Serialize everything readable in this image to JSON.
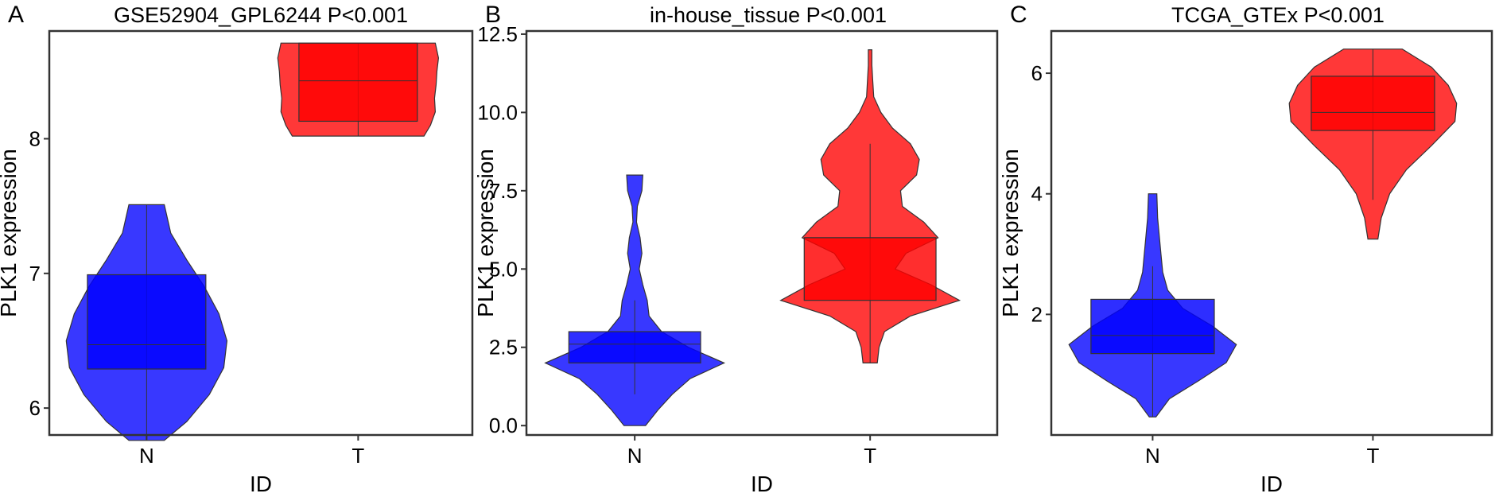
{
  "chart_data": [
    {
      "type": "violin",
      "panel": "A",
      "title": "GSE52904_GPL6244",
      "pvalue_label": "P<0.001",
      "xlabel": "ID",
      "ylabel": "PLK1 expression",
      "categories": [
        "N",
        "T"
      ],
      "ylim": [
        5.8,
        8.8
      ],
      "yticks": [
        6,
        7,
        8
      ],
      "ytick_labels": [
        "6",
        "7",
        "8"
      ],
      "grid": false,
      "groups": [
        {
          "name": "N",
          "color": "#0000ff",
          "min": 5.76,
          "q1": 6.29,
          "median": 6.47,
          "q3": 6.99,
          "max": 7.51,
          "density": [
            [
              5.76,
              0.22
            ],
            [
              5.9,
              0.5
            ],
            [
              6.1,
              0.78
            ],
            [
              6.3,
              0.96
            ],
            [
              6.5,
              1.0
            ],
            [
              6.7,
              0.9
            ],
            [
              6.9,
              0.72
            ],
            [
              7.1,
              0.5
            ],
            [
              7.3,
              0.3
            ],
            [
              7.51,
              0.22
            ]
          ]
        },
        {
          "name": "T",
          "color": "#ff0000",
          "min": 8.02,
          "q1": 8.13,
          "median": 8.43,
          "q3": 8.71,
          "max": 8.71,
          "density": [
            [
              8.02,
              0.82
            ],
            [
              8.1,
              0.9
            ],
            [
              8.2,
              0.96
            ],
            [
              8.3,
              0.95
            ],
            [
              8.4,
              0.97
            ],
            [
              8.5,
              0.98
            ],
            [
              8.6,
              1.0
            ],
            [
              8.71,
              0.96
            ]
          ]
        }
      ]
    },
    {
      "type": "violin",
      "panel": "B",
      "title": "in-house_tissue",
      "pvalue_label": "P<0.001",
      "xlabel": "ID",
      "ylabel": "PLK1 expression",
      "categories": [
        "N",
        "T"
      ],
      "ylim": [
        -0.3,
        12.6
      ],
      "yticks": [
        0,
        2.5,
        5,
        7.5,
        10,
        12.5
      ],
      "ytick_labels": [
        "0.0",
        "2.5",
        "5.0",
        "7.5",
        "10.0",
        "12.5"
      ],
      "grid": false,
      "groups": [
        {
          "name": "N",
          "color": "#0000ff",
          "min": 1.0,
          "q1": 2.0,
          "median": 2.6,
          "q3": 3.0,
          "max": 4.0,
          "density": [
            [
              0,
              0.12
            ],
            [
              0.5,
              0.26
            ],
            [
              1,
              0.42
            ],
            [
              1.5,
              0.62
            ],
            [
              2,
              1.0
            ],
            [
              2.5,
              0.6
            ],
            [
              3,
              0.3
            ],
            [
              3.5,
              0.16
            ],
            [
              4,
              0.14
            ],
            [
              4.5,
              0.09
            ],
            [
              5,
              0.05
            ],
            [
              5.5,
              0.08
            ],
            [
              6,
              0.06
            ],
            [
              6.5,
              0.02
            ],
            [
              7,
              0.03
            ],
            [
              7.5,
              0.08
            ],
            [
              8,
              0.09
            ]
          ]
        },
        {
          "name": "T",
          "color": "#ff0000",
          "min": 2.0,
          "q1": 4.0,
          "median": 6.0,
          "q3": 6.0,
          "max": 9.0,
          "density": [
            [
              2,
              0.08
            ],
            [
              2.5,
              0.1
            ],
            [
              3,
              0.16
            ],
            [
              3.5,
              0.45
            ],
            [
              4,
              1.0
            ],
            [
              4.5,
              0.68
            ],
            [
              5,
              0.28
            ],
            [
              5.5,
              0.4
            ],
            [
              6,
              0.76
            ],
            [
              6.5,
              0.6
            ],
            [
              7,
              0.36
            ],
            [
              7.5,
              0.34
            ],
            [
              8,
              0.52
            ],
            [
              8.5,
              0.55
            ],
            [
              9,
              0.45
            ],
            [
              9.5,
              0.25
            ],
            [
              10,
              0.12
            ],
            [
              10.5,
              0.04
            ],
            [
              11,
              0.03
            ],
            [
              11.5,
              0.02
            ],
            [
              12,
              0.02
            ]
          ]
        }
      ]
    },
    {
      "type": "violin",
      "panel": "C",
      "title": "TCGA_GTEx",
      "pvalue_label": "P<0.001",
      "xlabel": "ID",
      "ylabel": "PLK1 expression",
      "categories": [
        "N",
        "T"
      ],
      "ylim": [
        0,
        6.7
      ],
      "yticks": [
        2,
        4,
        6
      ],
      "ytick_labels": [
        "2",
        "4",
        "6"
      ],
      "grid": false,
      "groups": [
        {
          "name": "N",
          "color": "#0000ff",
          "min": 0.3,
          "q1": 1.35,
          "median": 1.65,
          "q3": 2.25,
          "max": 2.8,
          "density": [
            [
              0.3,
              0.04
            ],
            [
              0.6,
              0.2
            ],
            [
              0.9,
              0.55
            ],
            [
              1.2,
              0.88
            ],
            [
              1.5,
              1.0
            ],
            [
              1.8,
              0.72
            ],
            [
              2.1,
              0.36
            ],
            [
              2.4,
              0.18
            ],
            [
              2.7,
              0.12
            ],
            [
              3.0,
              0.1
            ],
            [
              3.3,
              0.08
            ],
            [
              3.6,
              0.06
            ],
            [
              4.0,
              0.05
            ]
          ]
        },
        {
          "name": "T",
          "color": "#ff0000",
          "min": 3.9,
          "q1": 5.05,
          "median": 5.35,
          "q3": 5.95,
          "max": 6.4,
          "density": [
            [
              3.25,
              0.06
            ],
            [
              3.6,
              0.1
            ],
            [
              4.0,
              0.2
            ],
            [
              4.4,
              0.4
            ],
            [
              4.8,
              0.7
            ],
            [
              5.2,
              0.98
            ],
            [
              5.5,
              1.0
            ],
            [
              5.8,
              0.9
            ],
            [
              6.1,
              0.7
            ],
            [
              6.4,
              0.35
            ]
          ]
        }
      ]
    }
  ]
}
